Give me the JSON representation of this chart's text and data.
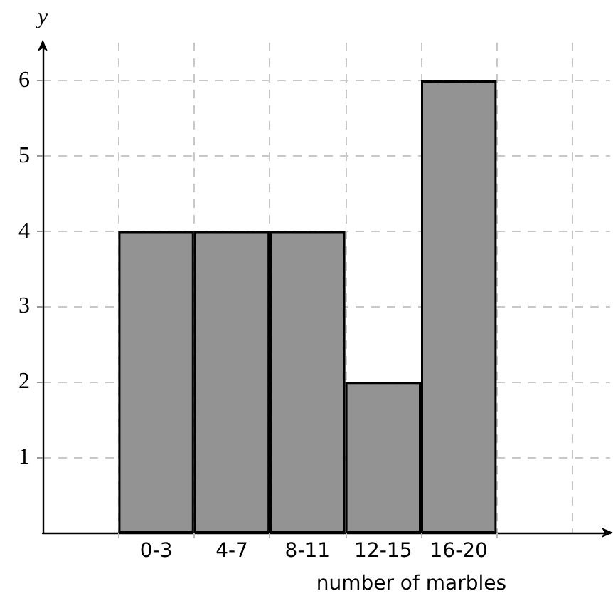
{
  "chart_data": {
    "type": "bar",
    "categories": [
      "0-3",
      "4-7",
      "8-11",
      "12-15",
      "16-20"
    ],
    "values": [
      4,
      4,
      4,
      2,
      6
    ],
    "color": "#939393",
    "xlabel": "number of marbles",
    "ylabel": "y",
    "ylim": [
      0,
      6.5
    ],
    "yticks": [
      1,
      2,
      3,
      4,
      5,
      6
    ],
    "grid": true
  }
}
